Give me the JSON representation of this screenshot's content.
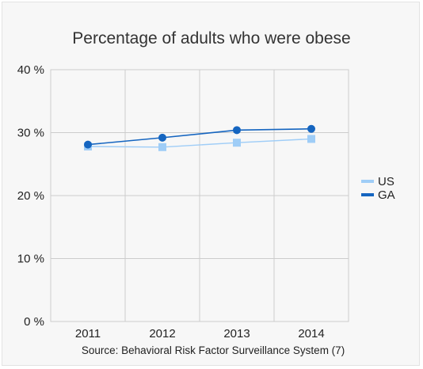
{
  "chart_data": {
    "type": "line",
    "title": "Percentage of adults who were obese",
    "source": "Source: Behavioral Risk Factor Surveillance System (7)",
    "x": [
      "2011",
      "2012",
      "2013",
      "2014"
    ],
    "y_ticks": [
      {
        "value": 0,
        "label": "0 %"
      },
      {
        "value": 10,
        "label": "10 %"
      },
      {
        "value": 20,
        "label": "20 %"
      },
      {
        "value": 30,
        "label": "30 %"
      },
      {
        "value": 40,
        "label": "40 %"
      }
    ],
    "ylim": [
      0,
      40
    ],
    "grid": true,
    "legend_position": "right",
    "series": [
      {
        "name": "US",
        "values": [
          27.8,
          27.7,
          28.4,
          29.0
        ],
        "color": "#9fcdf7",
        "marker": "square"
      },
      {
        "name": "GA",
        "values": [
          28.1,
          29.2,
          30.4,
          30.6
        ],
        "color": "#1565c0",
        "marker": "circle"
      }
    ]
  }
}
